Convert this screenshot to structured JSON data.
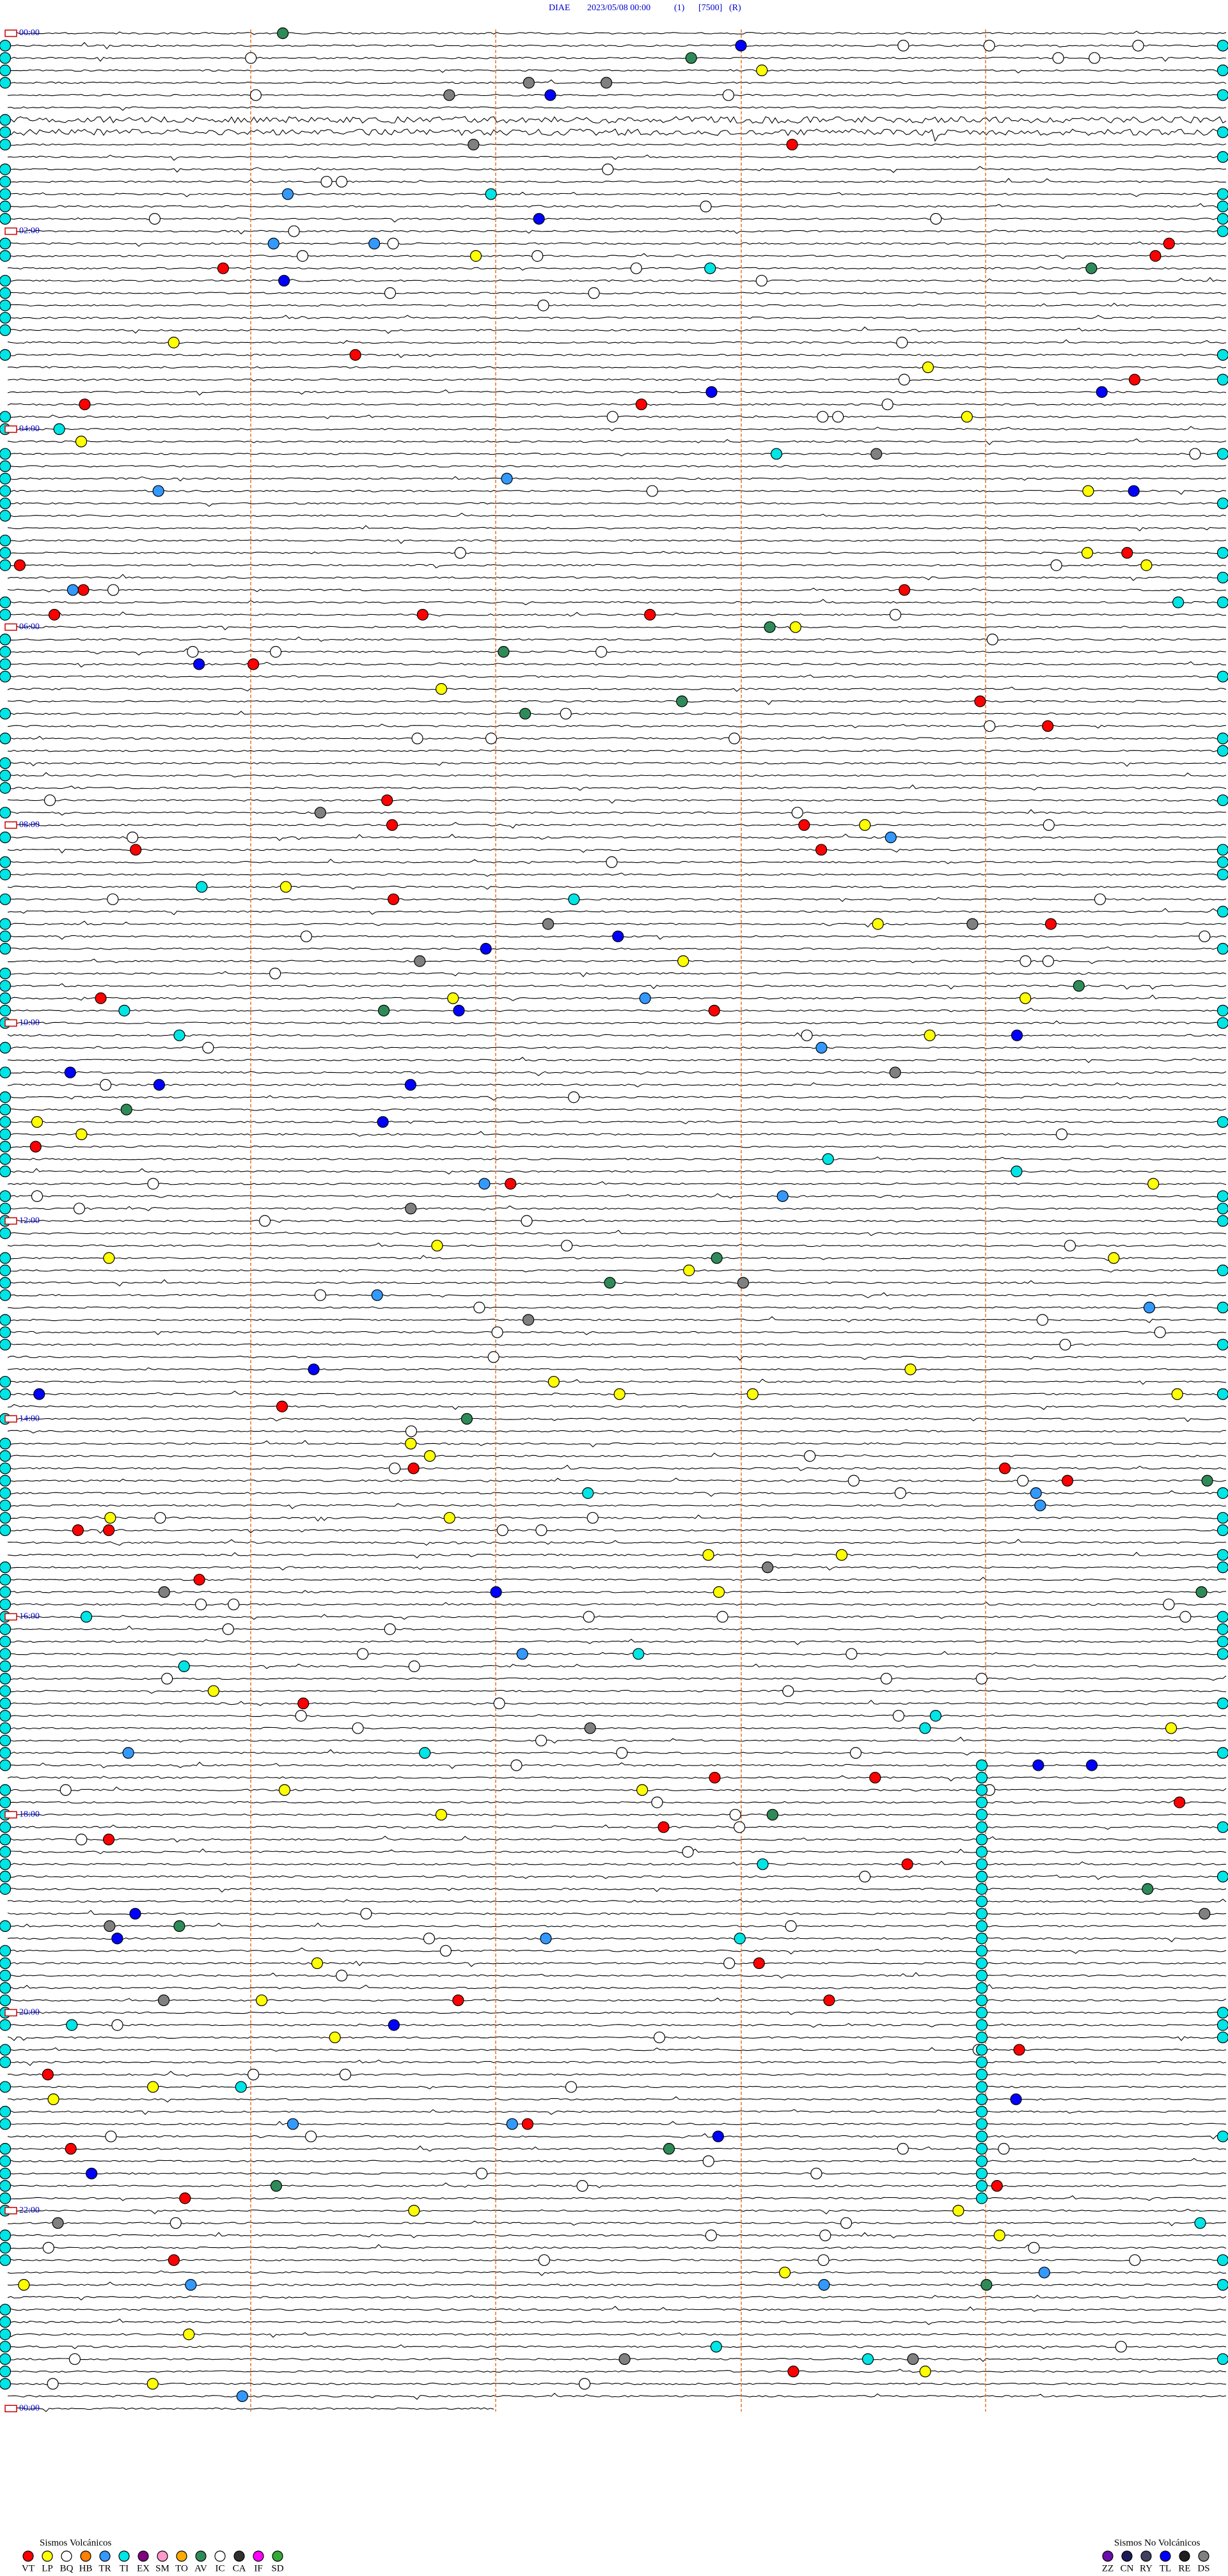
{
  "header": {
    "station": "DIAE",
    "datetime": "2023/05/08 00:00",
    "channel": "(1)",
    "scale": "[7500]",
    "mode": "(R)"
  },
  "hour_labels": [
    "00:00",
    "02:00",
    "04:00",
    "06:00",
    "08:00",
    "10:00",
    "12:00",
    "14:00",
    "16:00",
    "18:00",
    "20:00",
    "22:00",
    "00:00"
  ],
  "legend_volcanic": {
    "title": "Sismos Volcánicos",
    "items": [
      {
        "code": "VT",
        "color": "#ff0000"
      },
      {
        "code": "LP",
        "color": "#ffff00"
      },
      {
        "code": "BQ",
        "color": "#ffffff"
      },
      {
        "code": "HB",
        "color": "#ff8000"
      },
      {
        "code": "TR",
        "color": "#3399ff"
      },
      {
        "code": "TI",
        "color": "#00e5e5"
      },
      {
        "code": "EX",
        "color": "#800080"
      },
      {
        "code": "SM",
        "color": "#ff99cc"
      },
      {
        "code": "TO",
        "color": "#ffaa00"
      },
      {
        "code": "AV",
        "color": "#2e8b57"
      },
      {
        "code": "IC",
        "color": "#ffffff"
      },
      {
        "code": "CA",
        "color": "#303030"
      },
      {
        "code": "IF",
        "color": "#ff00ff"
      },
      {
        "code": "SD",
        "color": "#33aa33"
      }
    ]
  },
  "legend_nonvolcanic": {
    "title": "Sismos No Volcánicos",
    "items": [
      {
        "code": "ZZ",
        "color": "#6a0dad"
      },
      {
        "code": "CN",
        "color": "#1a1a5a"
      },
      {
        "code": "RY",
        "color": "#404060"
      },
      {
        "code": "TL",
        "color": "#0000ff"
      },
      {
        "code": "RE",
        "color": "#202020"
      },
      {
        "code": "DS",
        "color": "#808080"
      }
    ]
  }
}
